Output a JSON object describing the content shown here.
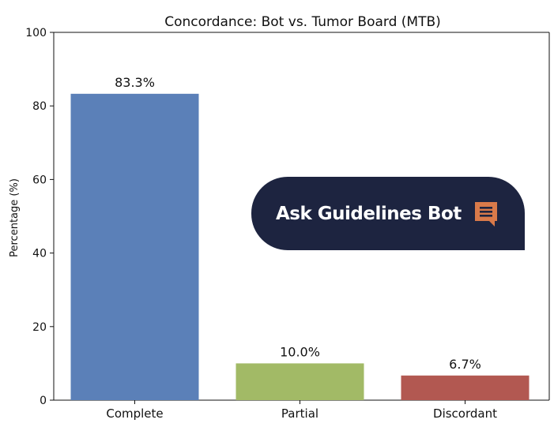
{
  "chart_data": {
    "type": "bar",
    "title": "Concordance: Bot vs. Tumor Board (MTB)",
    "xlabel": "",
    "ylabel": "Percentage (%)",
    "ylim": [
      0,
      100
    ],
    "yticks": [
      0,
      20,
      40,
      60,
      80,
      100
    ],
    "categories": [
      "Complete",
      "Partial",
      "Discordant"
    ],
    "values": [
      83.3,
      10.0,
      6.7
    ],
    "data_labels": [
      "83.3%",
      "10.0%",
      "6.7%"
    ],
    "colors": [
      "#5b80b8",
      "#a2ba66",
      "#b25851"
    ],
    "grid": false,
    "legend": "none"
  },
  "overlay": {
    "label": "Ask Guidelines Bot",
    "icon": "chat-bubble-icon",
    "background": "#1d2440",
    "icon_color": "#d97a4a"
  }
}
